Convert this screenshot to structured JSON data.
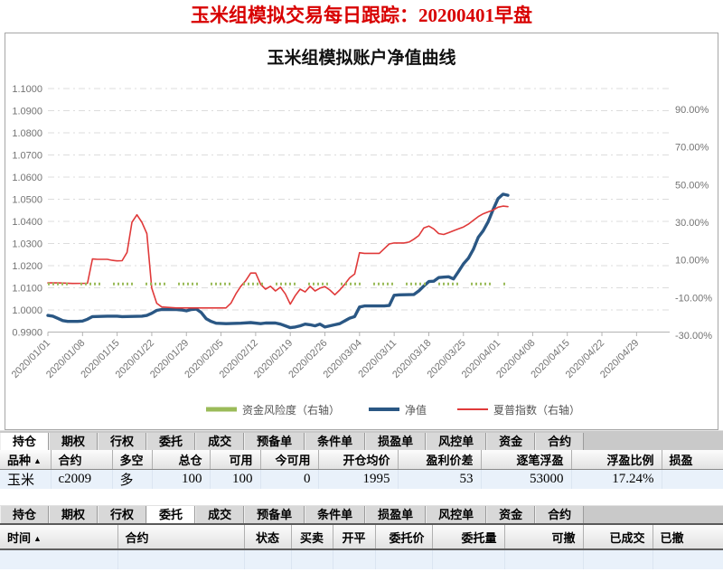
{
  "page_title": "玉米组模拟交易每日跟踪：20200401早盘",
  "chart": {
    "title": "玉米组模拟账户净值曲线",
    "legend": [
      {
        "label": "资金风险度（右轴）",
        "color": "#9BBB59"
      },
      {
        "label": "净值",
        "color": "#2A5784"
      },
      {
        "label": "夏普指数（右轴）",
        "color": "#E03A3A"
      }
    ]
  },
  "chart_data": {
    "type": "line",
    "title": "玉米组模拟账户净值曲线",
    "grid": "horizontal-dash-dot",
    "legend_position": "bottom",
    "x_ticks": [
      "2020/01/01",
      "2020/01/08",
      "2020/01/15",
      "2020/01/22",
      "2020/01/29",
      "2020/02/05",
      "2020/02/12",
      "2020/02/19",
      "2020/02/26",
      "2020/03/04",
      "2020/03/11",
      "2020/03/18",
      "2020/03/25",
      "2020/04/01",
      "2020/04/08",
      "2020/04/15",
      "2020/04/22",
      "2020/04/29"
    ],
    "left_axis": {
      "ticks": [
        "1.1000",
        "1.0900",
        "1.0800",
        "1.0700",
        "1.0600",
        "1.0500",
        "1.0400",
        "1.0300",
        "1.0200",
        "1.0100",
        "1.0000",
        "0.9900"
      ],
      "min": 0.99,
      "max": 1.1
    },
    "right_axis": {
      "ticks": [
        "90.00%",
        "70.00%",
        "50.00%",
        "30.00%",
        "10.00%",
        "-10.00%",
        "-30.00%"
      ],
      "min": -30,
      "max": 90
    },
    "series": [
      {
        "name": "净值",
        "axis": "left",
        "color": "#2A5784",
        "style": "solid-thick",
        "points": [
          [
            0,
            0.9975
          ],
          [
            1,
            0.9972
          ],
          [
            2,
            0.9962
          ],
          [
            3,
            0.9952
          ],
          [
            4,
            0.9948
          ],
          [
            6,
            0.9948
          ],
          [
            7,
            0.995
          ],
          [
            8,
            0.9958
          ],
          [
            9,
            0.997
          ],
          [
            12,
            0.9972
          ],
          [
            14,
            0.9972
          ],
          [
            15,
            0.997
          ],
          [
            19,
            0.9972
          ],
          [
            20,
            0.9975
          ],
          [
            21,
            0.9985
          ],
          [
            22,
            0.9998
          ],
          [
            23,
            1.0002
          ],
          [
            26,
            1.0002
          ],
          [
            27,
            1.0
          ],
          [
            28,
            0.9996
          ],
          [
            29,
            1.0002
          ],
          [
            30,
            1.0004
          ],
          [
            31,
            0.9988
          ],
          [
            32,
            0.996
          ],
          [
            33,
            0.9948
          ],
          [
            34,
            0.994
          ],
          [
            36,
            0.9938
          ],
          [
            39,
            0.994
          ],
          [
            41,
            0.9943
          ],
          [
            43,
            0.9938
          ],
          [
            44,
            0.9941
          ],
          [
            46,
            0.9941
          ],
          [
            47,
            0.9936
          ],
          [
            48,
            0.9928
          ],
          [
            49,
            0.992
          ],
          [
            50,
            0.9923
          ],
          [
            51,
            0.9928
          ],
          [
            52,
            0.9936
          ],
          [
            53,
            0.9933
          ],
          [
            54,
            0.9928
          ],
          [
            55,
            0.9936
          ],
          [
            56,
            0.9923
          ],
          [
            57,
            0.9928
          ],
          [
            58,
            0.9933
          ],
          [
            59,
            0.9938
          ],
          [
            61,
            0.9963
          ],
          [
            62,
            0.997
          ],
          [
            63,
            1.0013
          ],
          [
            64,
            1.0018
          ],
          [
            68,
            1.0018
          ],
          [
            69,
            1.002
          ],
          [
            70,
            1.0066
          ],
          [
            71,
            1.0068
          ],
          [
            74,
            1.007
          ],
          [
            75,
            1.0086
          ],
          [
            76,
            1.0108
          ],
          [
            77,
            1.0128
          ],
          [
            78,
            1.013
          ],
          [
            79,
            1.0146
          ],
          [
            80,
            1.0148
          ],
          [
            81,
            1.015
          ],
          [
            82,
            1.014
          ],
          [
            83,
            1.0173
          ],
          [
            84,
            1.0208
          ],
          [
            85,
            1.0233
          ],
          [
            86,
            1.0273
          ],
          [
            87,
            1.0328
          ],
          [
            88,
            1.0358
          ],
          [
            89,
            1.0398
          ],
          [
            90,
            1.0453
          ],
          [
            91,
            1.0503
          ],
          [
            92,
            1.0523
          ],
          [
            93,
            1.0518
          ]
        ]
      },
      {
        "name": "夏普指数（右轴）",
        "axis": "right",
        "color": "#E03A3A",
        "style": "solid-thin",
        "points": [
          [
            0,
            -2.2
          ],
          [
            2,
            -2.2
          ],
          [
            5,
            -2.5
          ],
          [
            8,
            -2.4
          ],
          [
            9,
            10.5
          ],
          [
            10,
            10.3
          ],
          [
            12,
            10.3
          ],
          [
            13,
            9.8
          ],
          [
            14,
            9.5
          ],
          [
            15,
            9.6
          ],
          [
            16,
            14
          ],
          [
            17,
            30
          ],
          [
            18,
            34
          ],
          [
            19,
            30
          ],
          [
            20,
            24
          ],
          [
            21,
            -5
          ],
          [
            22,
            -13
          ],
          [
            23,
            -15
          ],
          [
            26,
            -15.5
          ],
          [
            30,
            -15.5
          ],
          [
            36,
            -15.5
          ],
          [
            37,
            -13
          ],
          [
            38,
            -8
          ],
          [
            39,
            -4
          ],
          [
            40,
            -1
          ],
          [
            41,
            3
          ],
          [
            42,
            3
          ],
          [
            43,
            -3
          ],
          [
            44,
            -5.5
          ],
          [
            45,
            -4
          ],
          [
            46,
            -6.5
          ],
          [
            47,
            -4.5
          ],
          [
            48,
            -8
          ],
          [
            49,
            -13.5
          ],
          [
            50,
            -9
          ],
          [
            51,
            -5.5
          ],
          [
            52,
            -7
          ],
          [
            53,
            -4
          ],
          [
            54,
            -6.5
          ],
          [
            55,
            -5
          ],
          [
            56,
            -4.2
          ],
          [
            57,
            -6
          ],
          [
            58,
            -8.5
          ],
          [
            59,
            -6
          ],
          [
            60,
            -3
          ],
          [
            61,
            0.5
          ],
          [
            62,
            2.5
          ],
          [
            63,
            13.8
          ],
          [
            64,
            13.5
          ],
          [
            67,
            13.5
          ],
          [
            68,
            16
          ],
          [
            69,
            18.5
          ],
          [
            70,
            19
          ],
          [
            72,
            19
          ],
          [
            73,
            19.5
          ],
          [
            74,
            21
          ],
          [
            75,
            23
          ],
          [
            76,
            27
          ],
          [
            77,
            28
          ],
          [
            78,
            26.5
          ],
          [
            79,
            24
          ],
          [
            80,
            23.5
          ],
          [
            81,
            24.5
          ],
          [
            82,
            25.5
          ],
          [
            83,
            26.5
          ],
          [
            84,
            27.5
          ],
          [
            85,
            29
          ],
          [
            86,
            31
          ],
          [
            87,
            33
          ],
          [
            88,
            34.5
          ],
          [
            89,
            35.5
          ],
          [
            90,
            36.5
          ],
          [
            91,
            38
          ],
          [
            92,
            38.6
          ],
          [
            93,
            38.3
          ]
        ]
      },
      {
        "name": "资金风险度（右轴）",
        "axis": "right",
        "color": "#9BBB59",
        "style": "dotted-thick",
        "points": [
          [
            0,
            -2.8
          ],
          [
            93,
            -2.8
          ]
        ]
      }
    ]
  },
  "tabs": {
    "labels": [
      "持仓",
      "期权",
      "行权",
      "委托",
      "成交",
      "预备单",
      "条件单",
      "损盈单",
      "风控单",
      "资金",
      "合约"
    ]
  },
  "positions_panel": {
    "active_tab": "持仓",
    "sort_indicator": "▲",
    "sorted_column_index": 0,
    "columns": [
      "品种",
      "合约",
      "多空",
      "总仓",
      "可用",
      "今可用",
      "开仓均价",
      "盈利价差",
      "逐笔浮盈",
      "浮盈比例",
      "损盈"
    ],
    "rows": [
      {
        "cells": [
          "玉米",
          "c2009",
          "多",
          "100",
          "100",
          "0",
          "1995",
          "53",
          "53000",
          "17.24%",
          ""
        ],
        "red_cells": [
          2,
          7,
          8
        ]
      }
    ]
  },
  "orders_panel": {
    "active_tab": "委托",
    "sort_indicator": "▲",
    "sorted_column_index": 0,
    "columns": [
      "时间",
      "合约",
      "状态",
      "买卖",
      "开平",
      "委托价",
      "委托量",
      "可撤",
      "已成交",
      "已撤"
    ],
    "rows": []
  },
  "colors": {
    "page_title_red": "#D80000",
    "data_red": "#CC1111",
    "row_stripe_blue": "#E9F1FA",
    "net_value_line": "#2A5784",
    "sharpe_line": "#E03A3A",
    "risk_line": "#9BBB59"
  }
}
